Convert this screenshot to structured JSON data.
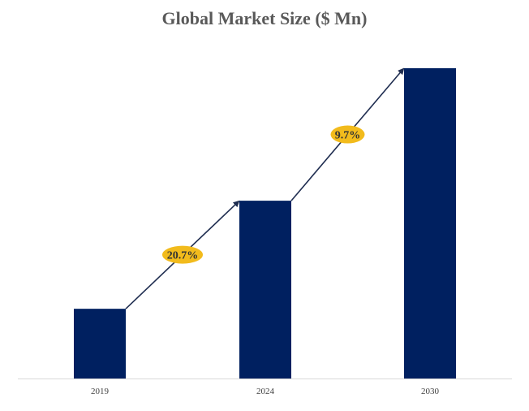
{
  "chart_data": {
    "type": "bar",
    "title": "Global Market Size ($ Mn)",
    "categories": [
      "2019",
      "2024",
      "2030"
    ],
    "values": [
      1,
      2.55,
      4.45
    ],
    "xlabel": "",
    "ylabel": "",
    "ylim": [
      0,
      4.45
    ],
    "grid": false,
    "legend": "none",
    "annotations": [
      {
        "from": "2019",
        "to": "2024",
        "text": "20.7%"
      },
      {
        "from": "2024",
        "to": "2030",
        "text": "9.7%"
      }
    ],
    "colors": {
      "bar": "#002060",
      "arrow": "#1f2d50",
      "badge": "#f2bb1c",
      "axis": "#d9d9d9"
    }
  }
}
